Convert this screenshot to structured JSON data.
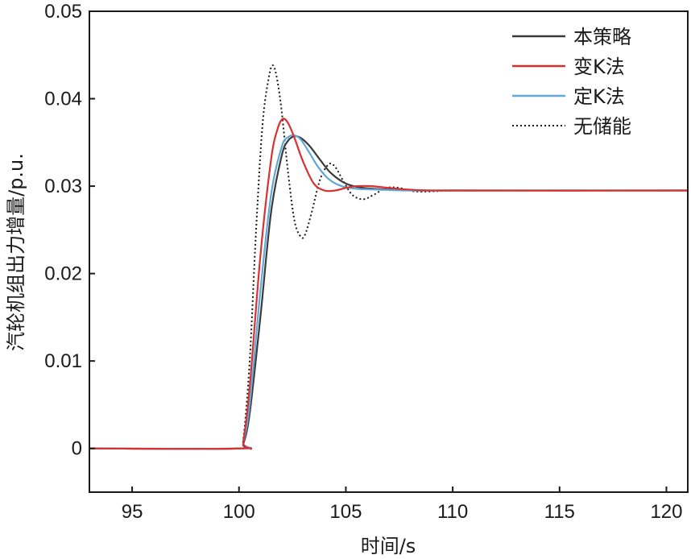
{
  "chart_data": {
    "type": "line",
    "title": "",
    "xlabel": "时间/s",
    "ylabel": "汽轮机组出力增量/p.u.",
    "xlim": [
      93,
      121
    ],
    "ylim": [
      -0.005,
      0.05
    ],
    "xticks": [
      95,
      100,
      105,
      110,
      115,
      120
    ],
    "xtick_labels": [
      "95",
      "100",
      "105",
      "110",
      "115",
      "120"
    ],
    "yticks": [
      0,
      0.01,
      0.02,
      0.03,
      0.04,
      0.05
    ],
    "ytick_labels": [
      "0",
      "0.01",
      "0.02",
      "0.03",
      "0.04",
      "0.05"
    ],
    "grid": false,
    "legend_position": "top-right",
    "series": [
      {
        "name": "本策略",
        "color": "#3a3a3a",
        "style": "solid",
        "x": [
          93,
          100,
          100.2,
          100.5,
          101,
          101.5,
          102,
          102.3,
          102.6,
          102.9,
          103.3,
          103.8,
          104.3,
          105,
          105.8,
          107,
          108.5,
          110,
          115,
          121
        ],
        "y": [
          0,
          0,
          0.0005,
          0.004,
          0.015,
          0.027,
          0.0335,
          0.0352,
          0.0357,
          0.0355,
          0.0346,
          0.033,
          0.0315,
          0.0303,
          0.0298,
          0.0296,
          0.0295,
          0.0295,
          0.0295,
          0.0295
        ]
      },
      {
        "name": "变K法",
        "color": "#d93030",
        "style": "solid",
        "x": [
          93,
          100,
          100.2,
          100.5,
          101,
          101.5,
          101.8,
          102.05,
          102.3,
          102.6,
          103,
          103.5,
          104,
          104.5,
          105,
          105.5,
          106.2,
          107,
          108,
          110,
          121
        ],
        "y": [
          0,
          0,
          0.0008,
          0.007,
          0.022,
          0.033,
          0.0365,
          0.0377,
          0.0372,
          0.0355,
          0.0328,
          0.0303,
          0.0295,
          0.0295,
          0.0298,
          0.03,
          0.03,
          0.0298,
          0.0296,
          0.0295,
          0.0295
        ]
      },
      {
        "name": "定K法",
        "color": "#5fa8d8",
        "style": "solid",
        "x": [
          93,
          100,
          100.2,
          100.5,
          101,
          101.5,
          102,
          102.3,
          102.6,
          102.9,
          103.3,
          103.7,
          104.2,
          104.8,
          105.5,
          106.5,
          108,
          110,
          121
        ],
        "y": [
          0,
          0,
          0.0007,
          0.005,
          0.018,
          0.029,
          0.0345,
          0.0356,
          0.0358,
          0.0353,
          0.0338,
          0.0322,
          0.0308,
          0.03,
          0.0297,
          0.0296,
          0.0295,
          0.0295,
          0.0295
        ]
      },
      {
        "name": "无储能",
        "color": "#1a1a1a",
        "style": "dotted",
        "x": [
          93,
          100,
          100.2,
          100.5,
          100.8,
          101.1,
          101.4,
          101.6,
          101.8,
          102,
          102.3,
          102.6,
          102.9,
          103.1,
          103.4,
          103.8,
          104.2,
          104.5,
          104.9,
          105.3,
          105.8,
          106.3,
          106.9,
          107.5,
          108.2,
          109,
          110,
          112,
          121
        ],
        "y": [
          0,
          0,
          0.001,
          0.01,
          0.025,
          0.037,
          0.0425,
          0.0438,
          0.042,
          0.0385,
          0.0315,
          0.026,
          0.0242,
          0.0245,
          0.027,
          0.0308,
          0.0325,
          0.0322,
          0.0305,
          0.029,
          0.0285,
          0.029,
          0.0298,
          0.0298,
          0.0294,
          0.0294,
          0.0295,
          0.0295,
          0.0295
        ]
      }
    ]
  }
}
